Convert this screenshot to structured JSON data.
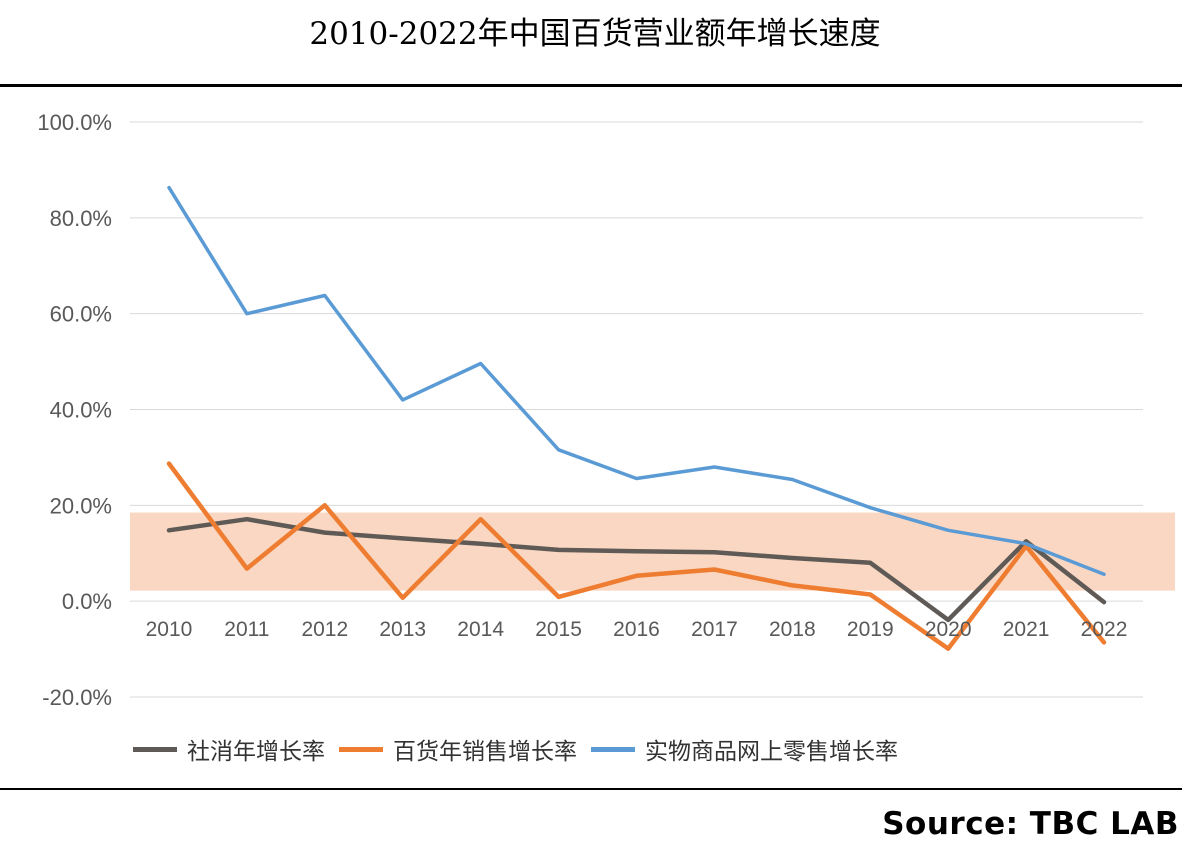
{
  "title": "2010-2022年中国百货营业额年增长速度",
  "source": "Source: TBC LAB",
  "chart_data": {
    "type": "line",
    "categories": [
      "2010",
      "2011",
      "2012",
      "2013",
      "2014",
      "2015",
      "2016",
      "2017",
      "2018",
      "2019",
      "2020",
      "2021",
      "2022"
    ],
    "y_ticks": [
      "100.0%",
      "80.0%",
      "60.0%",
      "40.0%",
      "20.0%",
      "0.0%",
      "-20.0%"
    ],
    "ylim": [
      -20,
      100
    ],
    "grid": true,
    "legend_placement": "bottom",
    "highlight_band": {
      "from": 2.2,
      "to": 18.5,
      "color": "#f9d3bb"
    },
    "series": [
      {
        "name": "社消年增长率",
        "color": "#5f5a56",
        "values": [
          14.8,
          17.1,
          14.3,
          13.1,
          12.0,
          10.7,
          10.4,
          10.2,
          9.0,
          8.0,
          -3.9,
          12.5,
          -0.2
        ]
      },
      {
        "name": "百货年销售增长率",
        "color": "#ee7d31",
        "values": [
          28.7,
          6.8,
          20.0,
          0.7,
          17.1,
          0.9,
          5.3,
          6.6,
          3.3,
          1.4,
          -9.9,
          11.5,
          -8.6
        ]
      },
      {
        "name": "实物商品网上零售增长率",
        "color": "#5b9bd5",
        "values": [
          86.3,
          60.0,
          63.8,
          42.0,
          49.6,
          31.6,
          25.6,
          28.0,
          25.4,
          19.5,
          14.8,
          12.0,
          5.6
        ]
      }
    ]
  }
}
